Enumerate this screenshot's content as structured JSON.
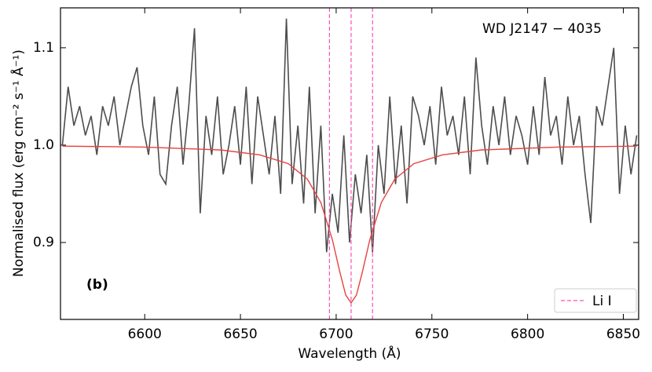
{
  "chart_data": {
    "type": "line",
    "xlabel": "Wavelength (Å)",
    "ylabel": "Normalised flux (erg cm⁻² s⁻¹ Å⁻¹)",
    "annotations": [
      "WD J2147 − 4035",
      "(b)"
    ],
    "xlim": [
      6556,
      6858
    ],
    "ylim": [
      0.821,
      1.141
    ],
    "xticks": [
      6600,
      6650,
      6700,
      6750,
      6800,
      6850
    ],
    "yticks": [
      0.9,
      {
        "value": 1.0,
        "label": "1.0"
      },
      1.1
    ],
    "legend": "lower right",
    "series": [
      {
        "color": "#4d4d4d",
        "x": [
          6557,
          6560,
          6563,
          6566,
          6569,
          6572,
          6575,
          6578,
          6581,
          6584,
          6587,
          6590,
          6593,
          6596,
          6599,
          6602,
          6605,
          6608,
          6611,
          6614,
          6617,
          6620,
          6623,
          6626,
          6629,
          6632,
          6635,
          6638,
          6641,
          6644,
          6647,
          6650,
          6653,
          6656,
          6659,
          6662,
          6665,
          6668,
          6671,
          6674,
          6677,
          6680,
          6683,
          6686,
          6689,
          6692,
          6695,
          6698,
          6701,
          6704,
          6707,
          6710,
          6713,
          6716,
          6719,
          6722,
          6725,
          6728,
          6731,
          6734,
          6737,
          6740,
          6743,
          6746,
          6749,
          6752,
          6755,
          6758,
          6761,
          6764,
          6767,
          6770,
          6773,
          6776,
          6779,
          6782,
          6785,
          6788,
          6791,
          6794,
          6797,
          6800,
          6803,
          6806,
          6809,
          6812,
          6815,
          6818,
          6821,
          6824,
          6827,
          6830,
          6833,
          6836,
          6839,
          6842,
          6845,
          6848,
          6851,
          6854,
          6857
        ],
        "values": [
          1.0,
          1.06,
          1.02,
          1.04,
          1.01,
          1.03,
          0.99,
          1.04,
          1.02,
          1.05,
          1.0,
          1.03,
          1.06,
          1.08,
          1.02,
          0.99,
          1.05,
          0.97,
          0.96,
          1.02,
          1.06,
          0.98,
          1.04,
          1.12,
          0.93,
          1.03,
          0.99,
          1.05,
          0.97,
          1.0,
          1.04,
          0.98,
          1.06,
          0.96,
          1.05,
          1.01,
          0.97,
          1.03,
          0.95,
          1.13,
          0.96,
          1.02,
          0.94,
          1.06,
          0.93,
          1.02,
          0.89,
          0.95,
          0.91,
          1.01,
          0.9,
          0.97,
          0.93,
          0.99,
          0.89,
          1.0,
          0.95,
          1.05,
          0.96,
          1.02,
          0.94,
          1.05,
          1.03,
          1.0,
          1.04,
          0.98,
          1.06,
          1.01,
          1.03,
          0.99,
          1.05,
          0.97,
          1.09,
          1.02,
          0.98,
          1.04,
          1.0,
          1.05,
          0.99,
          1.03,
          1.01,
          0.98,
          1.04,
          0.99,
          1.07,
          1.01,
          1.03,
          0.98,
          1.05,
          1.0,
          1.03,
          0.97,
          0.92,
          1.04,
          1.02,
          1.06,
          1.1,
          0.95,
          1.02,
          0.97,
          1.01
        ]
      },
      {
        "color": "#e8423f",
        "x": [
          6557,
          6600,
          6640,
          6660,
          6675,
          6685,
          6692,
          6698,
          6702,
          6705,
          6707.8,
          6710.6,
          6713.6,
          6717.6,
          6723.6,
          6730.6,
          6740.6,
          6755.6,
          6775.6,
          6815.6,
          6857
        ],
        "values": [
          0.999,
          0.998,
          0.995,
          0.99,
          0.981,
          0.965,
          0.941,
          0.903,
          0.869,
          0.846,
          0.838,
          0.846,
          0.869,
          0.903,
          0.941,
          0.965,
          0.981,
          0.99,
          0.995,
          0.998,
          0.999
        ]
      }
    ],
    "vlines": {
      "name": "Li I",
      "color": "#ff4fb4",
      "values": [
        6696.5,
        6707.8,
        6719
      ]
    }
  }
}
